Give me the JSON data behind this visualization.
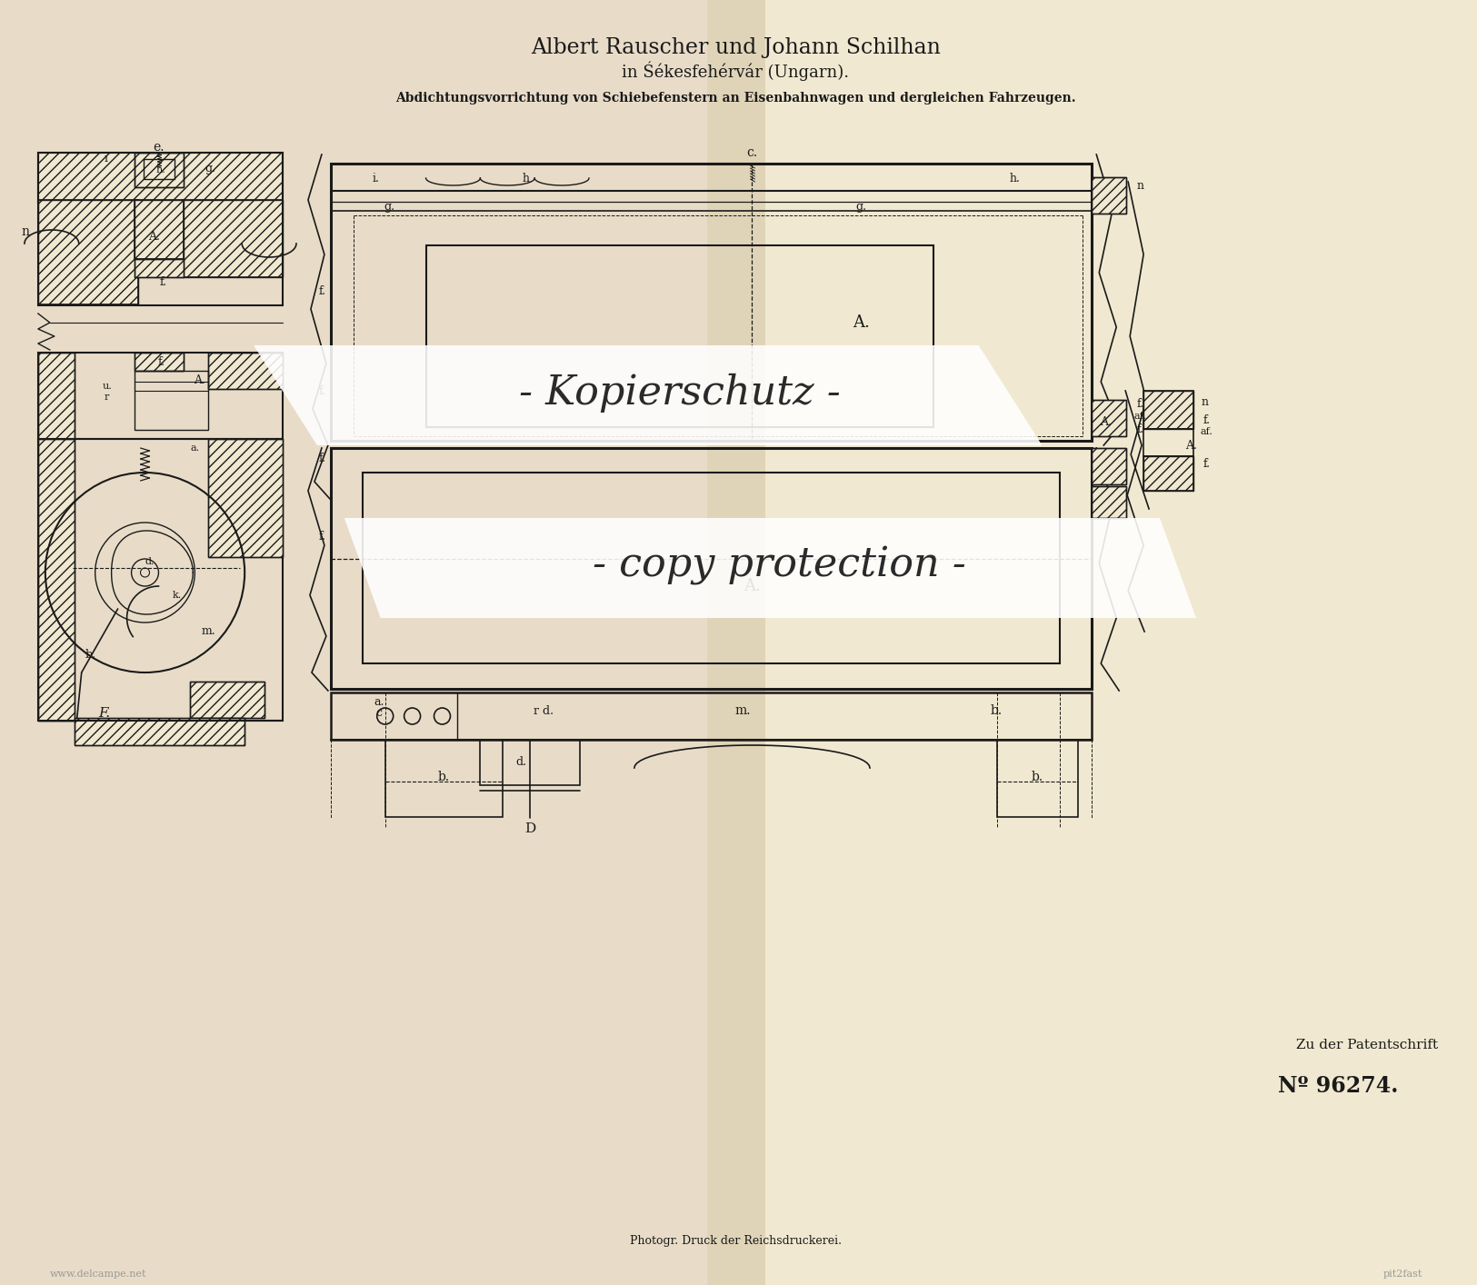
{
  "bg_color": "#f0e8d0",
  "bg_color2": "#e8dcc0",
  "title_line1": "Albert Rauscher und Johann Schilhan",
  "title_line2": "in Śékesfehérvár (Ungarn).",
  "subtitle": "Abdichtungsvorrichtung von Schiebefenstern an Eisenbahnwagen und dergleichen Fahrzeugen.",
  "watermark_line1": "- Kopierschutz -",
  "watermark_line2": "- copy protection -",
  "bottom_text1": "Zu der Patentschrift",
  "bottom_number": "Nº 96274.",
  "footer_text": "Photogr. Druck der Reichsdruckerei.",
  "watermark_left": "www.delcampe.net",
  "watermark_right": "pit2fast",
  "ink_color": "#1a1a1a",
  "line_color": "#1a1a1a",
  "hatch_color": "#1a1a1a",
  "wm_strip_color": "#ffffff",
  "wm_text_color": "#2a2a2a"
}
